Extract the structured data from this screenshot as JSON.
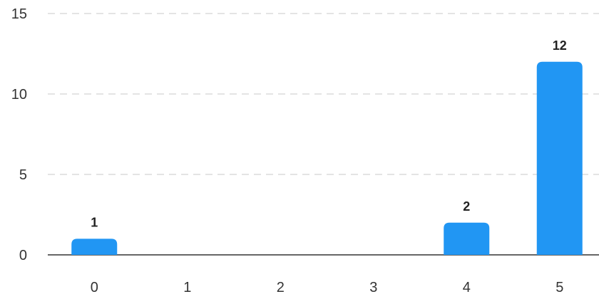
{
  "chart_data": {
    "type": "bar",
    "categories": [
      "0",
      "1",
      "2",
      "3",
      "4",
      "5"
    ],
    "values": [
      1,
      0,
      0,
      0,
      2,
      12
    ],
    "data_labels": [
      "1",
      "",
      "",
      "",
      "2",
      "12"
    ],
    "y_ticks": [
      "0",
      "5",
      "10",
      "15"
    ],
    "ylim": [
      0,
      15
    ],
    "grid": true,
    "bar_color": "#2196f3"
  }
}
